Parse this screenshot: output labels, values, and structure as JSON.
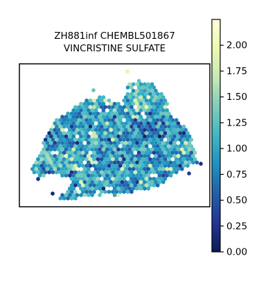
{
  "chart_data": {
    "type": "hexbin-spatial",
    "title_lines": [
      "ZH881inf CHEMBL501867",
      "VINCRISTINE SULFATE"
    ],
    "colormap": "YlGnBu_r",
    "colorbar": {
      "range": [
        0,
        2.25
      ],
      "ticks": [
        0.0,
        0.25,
        0.5,
        0.75,
        1.0,
        1.25,
        1.5,
        1.75,
        2.0
      ],
      "tick_labels": [
        "0.00",
        "0.25",
        "0.50",
        "0.75",
        "1.00",
        "1.25",
        "1.50",
        "1.75",
        "2.00"
      ]
    },
    "xaxis": {
      "visible": false
    },
    "yaxis": {
      "visible": false
    },
    "value_summary": {
      "min": 0.0,
      "max": 2.2,
      "typical": 0.95
    }
  }
}
